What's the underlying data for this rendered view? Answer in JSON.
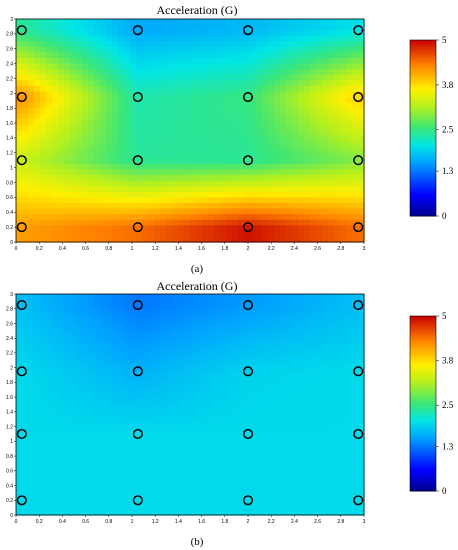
{
  "chart_data": [
    {
      "type": "heatmap",
      "title": "Acceleration (G)",
      "panel_label": "(a)",
      "xlim": [
        0,
        3
      ],
      "ylim": [
        0,
        3
      ],
      "x_ticks": [
        "0",
        "0.2",
        "0.4",
        "0.6",
        "0.8",
        "1",
        "1.2",
        "1.4",
        "1.6",
        "1.8",
        "2",
        "2.2",
        "2.4",
        "2.6",
        "2.8",
        "3"
      ],
      "y_ticks": [
        "0",
        "0.2",
        "0.4",
        "0.6",
        "0.8",
        "1",
        "1.2",
        "1.4",
        "1.6",
        "1.8",
        "2",
        "2.2",
        "2.4",
        "2.6",
        "2.8",
        "3"
      ],
      "colorbar": {
        "min": 0,
        "max": 5.1,
        "tick_labels": [
          "5",
          "3.8",
          "2.5",
          "1.3",
          "0"
        ],
        "tick_values": [
          5.1,
          3.8,
          2.5,
          1.3,
          0
        ]
      },
      "x": [
        0.05,
        1.05,
        2.0,
        2.95
      ],
      "y": [
        0.2,
        1.1,
        1.95,
        2.85
      ],
      "values": [
        [
          4.2,
          4.5,
          5.0,
          4.5
        ],
        [
          3.3,
          2.4,
          2.4,
          2.9
        ],
        [
          4.3,
          2.3,
          2.5,
          3.9
        ],
        [
          2.4,
          1.6,
          1.7,
          2.0
        ]
      ],
      "sensor_points": [
        {
          "x": 0.05,
          "y": 0.2
        },
        {
          "x": 1.05,
          "y": 0.2
        },
        {
          "x": 2.0,
          "y": 0.2
        },
        {
          "x": 2.95,
          "y": 0.2
        },
        {
          "x": 0.05,
          "y": 1.1
        },
        {
          "x": 1.05,
          "y": 1.1
        },
        {
          "x": 2.0,
          "y": 1.1
        },
        {
          "x": 2.95,
          "y": 1.1
        },
        {
          "x": 0.05,
          "y": 1.95
        },
        {
          "x": 1.05,
          "y": 1.95
        },
        {
          "x": 2.0,
          "y": 1.95
        },
        {
          "x": 2.95,
          "y": 1.95
        },
        {
          "x": 0.05,
          "y": 2.85
        },
        {
          "x": 1.05,
          "y": 2.85
        },
        {
          "x": 2.0,
          "y": 2.85
        },
        {
          "x": 2.95,
          "y": 2.85
        }
      ]
    },
    {
      "type": "heatmap",
      "title": "Acceleration (G)",
      "panel_label": "(b)",
      "xlim": [
        0,
        3
      ],
      "ylim": [
        0,
        3
      ],
      "x_ticks": [
        "0",
        "0.2",
        "0.4",
        "0.6",
        "0.8",
        "1",
        "1.2",
        "1.4",
        "1.6",
        "1.8",
        "2",
        "2.2",
        "2.4",
        "2.6",
        "2.8",
        "3"
      ],
      "y_ticks": [
        "0",
        "0.2",
        "0.4",
        "0.6",
        "0.8",
        "1",
        "1.2",
        "1.4",
        "1.6",
        "1.8",
        "2",
        "2.2",
        "2.4",
        "2.6",
        "2.8",
        "3"
      ],
      "colorbar": {
        "min": 0,
        "max": 5.1,
        "tick_labels": [
          "5",
          "3.8",
          "2.5",
          "1.3",
          "0"
        ],
        "tick_values": [
          5.1,
          3.8,
          2.5,
          1.3,
          0
        ]
      },
      "x": [
        0.05,
        1.05,
        2.0,
        2.95
      ],
      "y": [
        0.2,
        1.1,
        1.95,
        2.85
      ],
      "values": [
        [
          1.95,
          1.95,
          1.95,
          1.95
        ],
        [
          1.95,
          1.95,
          1.95,
          1.95
        ],
        [
          1.95,
          1.65,
          1.9,
          1.95
        ],
        [
          1.75,
          1.3,
          1.5,
          1.75
        ]
      ],
      "sensor_points": [
        {
          "x": 0.05,
          "y": 0.2
        },
        {
          "x": 1.05,
          "y": 0.2
        },
        {
          "x": 2.0,
          "y": 0.2
        },
        {
          "x": 2.95,
          "y": 0.2
        },
        {
          "x": 0.05,
          "y": 1.1
        },
        {
          "x": 1.05,
          "y": 1.1
        },
        {
          "x": 2.0,
          "y": 1.1
        },
        {
          "x": 2.95,
          "y": 1.1
        },
        {
          "x": 0.05,
          "y": 1.95
        },
        {
          "x": 1.05,
          "y": 1.95
        },
        {
          "x": 2.0,
          "y": 1.95
        },
        {
          "x": 2.95,
          "y": 1.95
        },
        {
          "x": 0.05,
          "y": 2.85
        },
        {
          "x": 1.05,
          "y": 2.85
        },
        {
          "x": 2.0,
          "y": 2.85
        },
        {
          "x": 2.95,
          "y": 2.85
        }
      ]
    }
  ]
}
